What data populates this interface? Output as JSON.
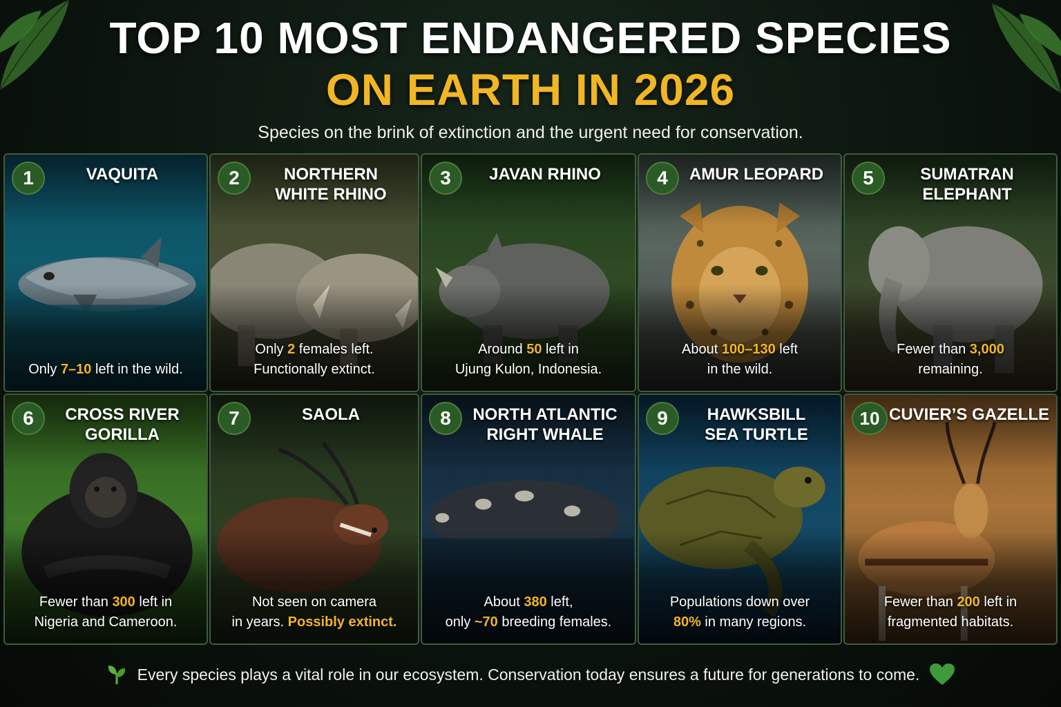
{
  "header": {
    "title_line1": "TOP 10 MOST ENDANGERED SPECIES",
    "title_line2": "ON EARTH IN 2026",
    "subtitle": "Species on the brink of extinction and the urgent need for conservation."
  },
  "cards": [
    {
      "rank": "1",
      "name_l1": "VAQUITA",
      "name_l2": "",
      "fact_l1_a": "Only ",
      "fact_l1_hl": "7–10",
      "fact_l1_b": " left in the wild.",
      "fact_l2_a": "",
      "fact_l2_hl": "",
      "fact_l2_b": ""
    },
    {
      "rank": "2",
      "name_l1": "NORTHERN",
      "name_l2": "WHITE RHINO",
      "fact_l1_a": "Only ",
      "fact_l1_hl": "2",
      "fact_l1_b": " females left.",
      "fact_l2_a": "Functionally extinct.",
      "fact_l2_hl": "",
      "fact_l2_b": ""
    },
    {
      "rank": "3",
      "name_l1": "JAVAN RHINO",
      "name_l2": "",
      "fact_l1_a": "Around ",
      "fact_l1_hl": "50",
      "fact_l1_b": " left in",
      "fact_l2_a": "Ujung Kulon, Indonesia.",
      "fact_l2_hl": "",
      "fact_l2_b": ""
    },
    {
      "rank": "4",
      "name_l1": "AMUR LEOPARD",
      "name_l2": "",
      "fact_l1_a": "About ",
      "fact_l1_hl": "100–130",
      "fact_l1_b": " left",
      "fact_l2_a": "in the wild.",
      "fact_l2_hl": "",
      "fact_l2_b": ""
    },
    {
      "rank": "5",
      "name_l1": "SUMATRAN",
      "name_l2": "ELEPHANT",
      "fact_l1_a": "Fewer than ",
      "fact_l1_hl": "3,000",
      "fact_l1_b": "",
      "fact_l2_a": "remaining.",
      "fact_l2_hl": "",
      "fact_l2_b": ""
    },
    {
      "rank": "6",
      "name_l1": "CROSS RIVER",
      "name_l2": "GORILLA",
      "fact_l1_a": "Fewer than ",
      "fact_l1_hl": "300",
      "fact_l1_b": " left in",
      "fact_l2_a": "Nigeria and Cameroon.",
      "fact_l2_hl": "",
      "fact_l2_b": ""
    },
    {
      "rank": "7",
      "name_l1": "SAOLA",
      "name_l2": "",
      "fact_l1_a": "Not seen on camera",
      "fact_l1_hl": "",
      "fact_l1_b": "",
      "fact_l2_a": "in years. ",
      "fact_l2_hl": "Possibly extinct.",
      "fact_l2_b": ""
    },
    {
      "rank": "8",
      "name_l1": "NORTH ATLANTIC",
      "name_l2": "RIGHT WHALE",
      "fact_l1_a": "About ",
      "fact_l1_hl": "380",
      "fact_l1_b": " left,",
      "fact_l2_a": "only ",
      "fact_l2_hl": "~70",
      "fact_l2_b": " breeding females."
    },
    {
      "rank": "9",
      "name_l1": "HAWKSBILL",
      "name_l2": "SEA TURTLE",
      "fact_l1_a": "Populations down over",
      "fact_l1_hl": "",
      "fact_l1_b": "",
      "fact_l2_a": "",
      "fact_l2_hl": "80%",
      "fact_l2_b": " in many regions."
    },
    {
      "rank": "10",
      "name_l1": "CUVIER’S GAZELLE",
      "name_l2": "",
      "fact_l1_a": "Fewer than ",
      "fact_l1_hl": "200",
      "fact_l1_b": " left in",
      "fact_l2_a": "fragmented habitats.",
      "fact_l2_hl": "",
      "fact_l2_b": ""
    }
  ],
  "footer": {
    "text": "Every species plays a vital role in our ecosystem. Conservation today ensures a future for generations to come."
  },
  "colors": {
    "accent": "#f2b624",
    "badge": "#2a5a26",
    "heart": "#3e9a3a"
  }
}
